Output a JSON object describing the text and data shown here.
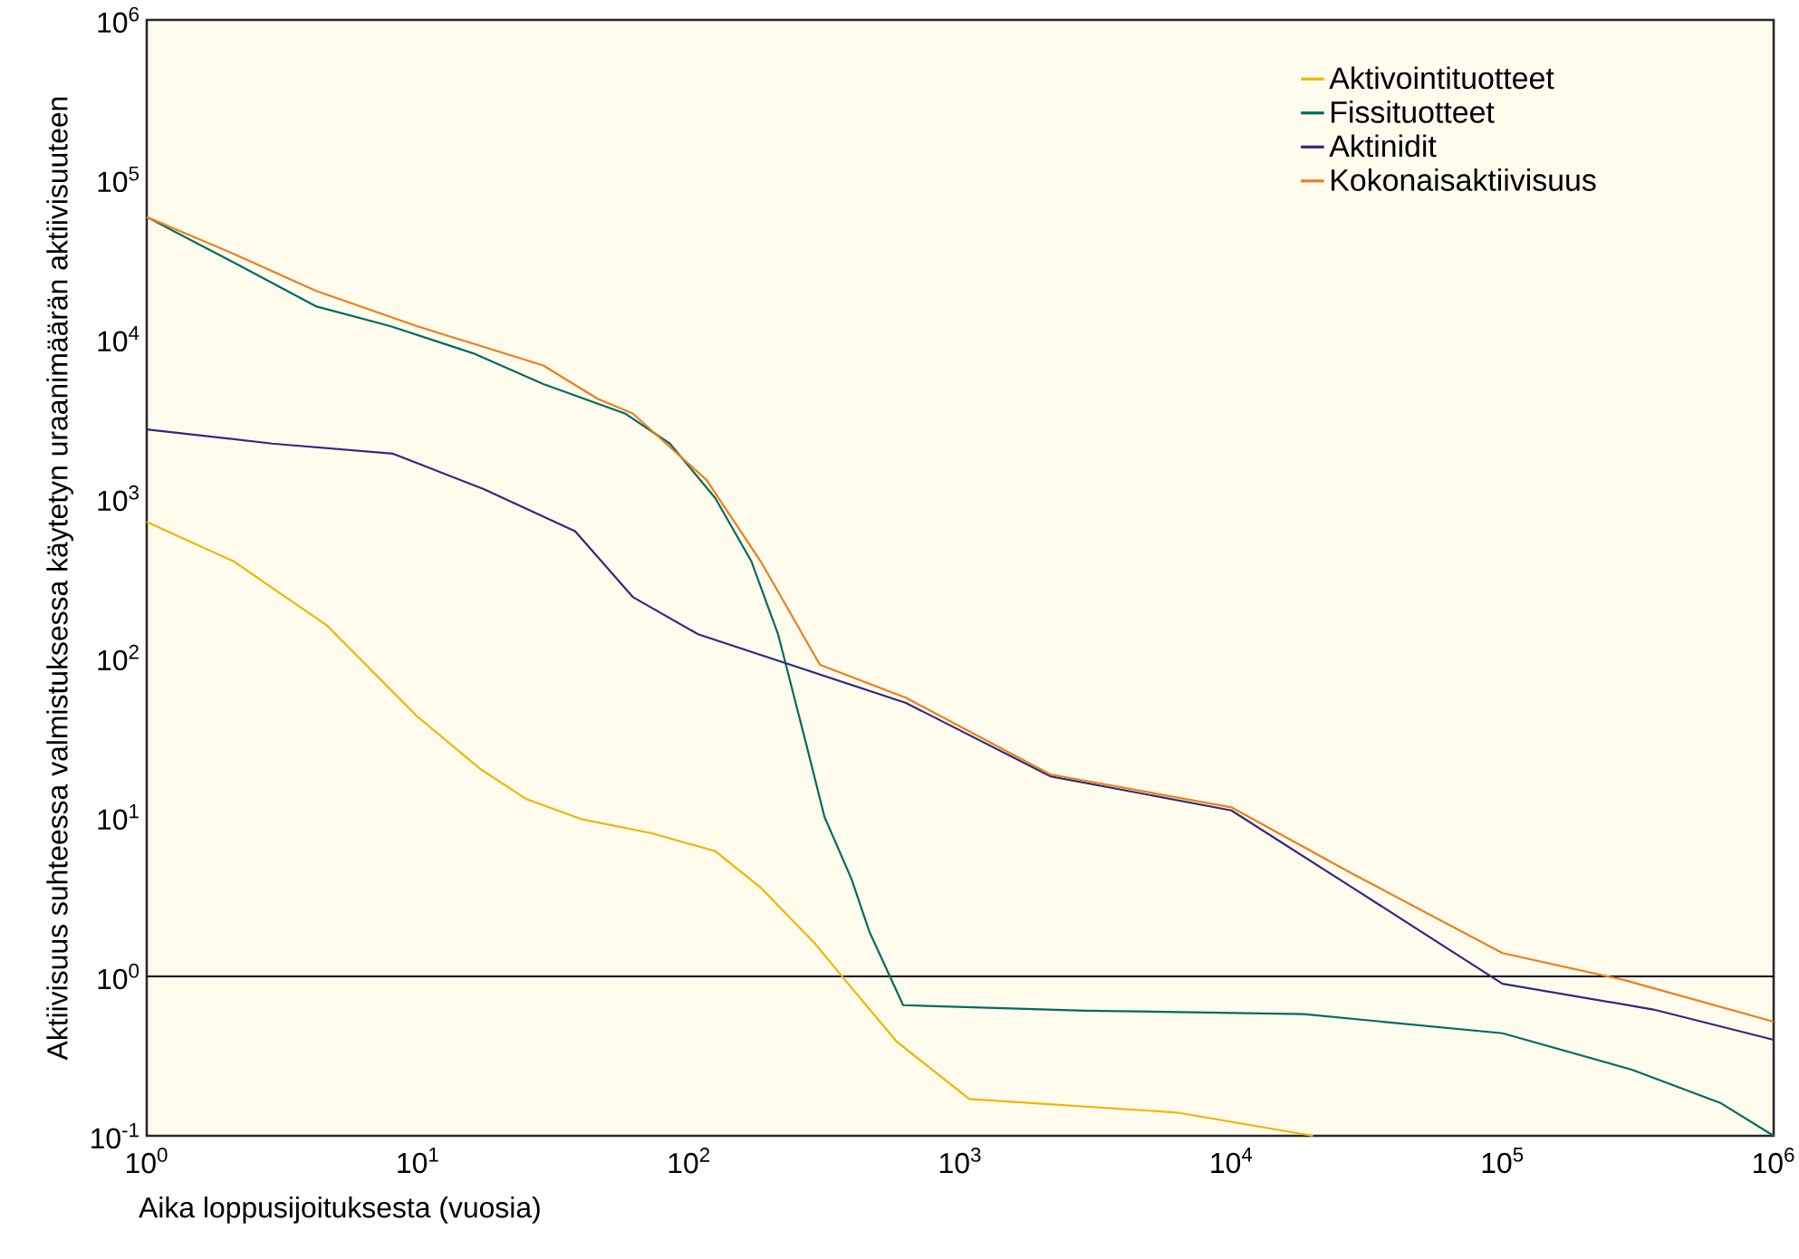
{
  "chart_data": {
    "type": "line",
    "xlabel": "Aika loppusijoituksesta (vuosia)",
    "ylabel": "Aktiivisuus suhteessa valmistuksessa käytetyn uraanimäärän aktiivisuuteen",
    "log": "xy",
    "xlim": [
      1,
      1000000
    ],
    "ylim": [
      0.1,
      1000000
    ],
    "xticks": [
      {
        "value": 1,
        "label": "10$^{0}$"
      },
      {
        "value": 10,
        "label": "10$^{1}$"
      },
      {
        "value": 100,
        "label": "10$^{2}$"
      },
      {
        "value": 1000,
        "label": "10$^{3}$"
      },
      {
        "value": 10000,
        "label": "10$^{4}$"
      },
      {
        "value": 100000,
        "label": "10$^{5}$"
      },
      {
        "value": 1000000,
        "label": "10$^{6}$"
      }
    ],
    "yticks": [
      {
        "value": 0.1,
        "label": "10$^{-1}$"
      },
      {
        "value": 1,
        "label": "10$^{0}$"
      },
      {
        "value": 10,
        "label": "10$^{1}$"
      },
      {
        "value": 100,
        "label": "10$^{2}$"
      },
      {
        "value": 1000,
        "label": "10$^{3}$"
      },
      {
        "value": 10000,
        "label": "10$^{4}$"
      },
      {
        "value": 100000,
        "label": "10$^{5}$"
      },
      {
        "value": 1000000,
        "label": "10$^{6}$"
      }
    ],
    "grid": false,
    "legend": "top right",
    "marker": "none",
    "line_style": "solid",
    "ref_lines": [
      {
        "axis": "y",
        "value": 1,
        "color": "#000000"
      }
    ],
    "series": [
      {
        "name": "Aktivointituotteet",
        "color": "#f0b400",
        "x": [
          1,
          2.1,
          4.6,
          9.9,
          17,
          25,
          40,
          73,
          125,
          184,
          292,
          397,
          583,
          1080,
          6300,
          20000
        ],
        "values": [
          710,
          400,
          160,
          43,
          20,
          13,
          9.7,
          7.9,
          6.1,
          3.6,
          1.6,
          0.85,
          0.39,
          0.17,
          0.14,
          0.1
        ]
      },
      {
        "name": "Fissituotteet",
        "color": "#006b5f",
        "x": [
          1,
          2.1,
          4.2,
          7.9,
          16,
          29,
          58,
          85,
          125,
          170,
          213,
          270,
          316,
          397,
          463,
          616,
          2900,
          18500,
          100000,
          300000,
          640000,
          1000000
        ],
        "values": [
          58000,
          30000,
          16000,
          12000,
          8100,
          5200,
          3400,
          2200,
          1000,
          400,
          140,
          29,
          10,
          4.1,
          1.9,
          0.66,
          0.61,
          0.58,
          0.44,
          0.26,
          0.16,
          0.1
        ]
      },
      {
        "name": "Aktinidit",
        "color": "#2e2a7e",
        "x": [
          1,
          2.9,
          8.1,
          17.5,
          38,
          62,
          108,
          630,
          2150,
          10000,
          28000,
          100000,
          360000,
          1000000
        ],
        "values": [
          2700,
          2200,
          1900,
          1140,
          620,
          240,
          140,
          52,
          18,
          11,
          3.6,
          0.9,
          0.62,
          0.4
        ]
      },
      {
        "name": "Kokonaisaktiivisuus",
        "color": "#f07d1a",
        "x": [
          1,
          2.1,
          4.2,
          9.9,
          29,
          46,
          62,
          116,
          184,
          304,
          630,
          2150,
          10000,
          28000,
          100000,
          280000,
          1000000
        ],
        "values": [
          58000,
          34000,
          20000,
          12000,
          6800,
          4200,
          3400,
          1300,
          400,
          90,
          56,
          18.5,
          11.5,
          4.4,
          1.4,
          0.95,
          0.52
        ]
      }
    ]
  }
}
